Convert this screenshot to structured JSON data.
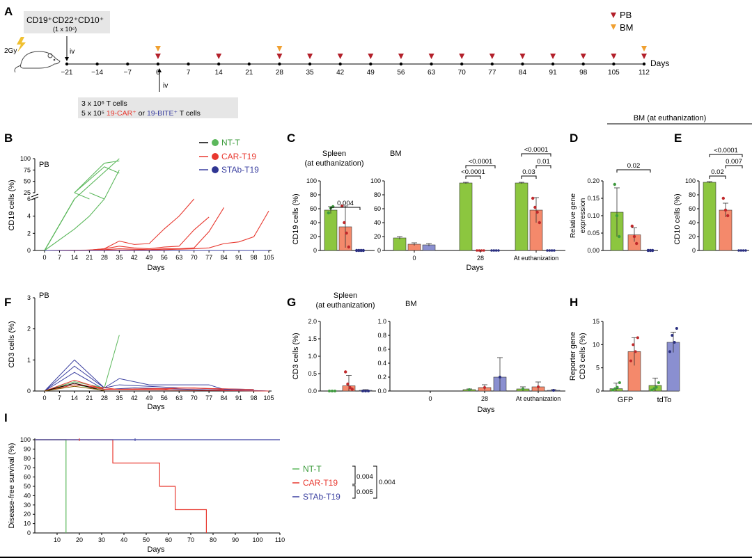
{
  "colors": {
    "green": "#5cb85c",
    "green_bar": "#8cc63f",
    "red": "#e8382f",
    "red_bar": "#f4896b",
    "blue": "#3a3fa0",
    "blue_bar": "#8a8fd0",
    "pb": "#b3202a",
    "bm": "#f0a030"
  },
  "panel_labels": {
    "A": "A",
    "B": "B",
    "C": "C",
    "D": "D",
    "E": "E",
    "F": "F",
    "G": "G",
    "H": "H",
    "I": "I"
  },
  "timeline": {
    "box1_line1": "CD19⁺CD22⁺CD10⁺",
    "box1_line2": "(1 x 10⁶)",
    "gy": "2Gy",
    "iv": "iv",
    "days": [
      -21,
      -14,
      -7,
      0,
      7,
      14,
      21,
      28,
      35,
      42,
      49,
      56,
      63,
      70,
      77,
      84,
      91,
      98,
      105,
      112
    ],
    "pb_days": [
      0,
      14,
      28,
      35,
      42,
      49,
      56,
      63,
      70,
      77,
      84,
      91,
      98,
      105,
      112
    ],
    "bm_days": [
      0,
      28,
      112
    ],
    "days_label": "Days",
    "legend_pb": "PB",
    "legend_bm": "BM",
    "box2_line1": "3 x 10⁶ T cells",
    "box2_line2_a": "5 x 10⁵ ",
    "box2_line2_b": "19-CAR⁺",
    "box2_line2_c": " or ",
    "box2_line2_d": "19-BITE⁺",
    "box2_line2_e": "  T cells"
  },
  "legend_B": {
    "items": [
      {
        "name": "NT-T",
        "color": "green"
      },
      {
        "name": "CAR-T19",
        "color": "red"
      },
      {
        "name": "STAb-T19",
        "color": "blue"
      }
    ]
  },
  "chart_data": [
    {
      "panel": "B",
      "type": "line",
      "title": "PB",
      "ylabel": "CD19 cells (%)",
      "xlabel": "Days",
      "xticks": [
        0,
        7,
        14,
        21,
        28,
        35,
        42,
        49,
        56,
        63,
        70,
        77,
        84,
        91,
        98,
        105
      ],
      "yticks_lower": [
        0,
        2,
        4,
        6
      ],
      "yticks_upper": [
        25,
        50,
        75,
        100
      ],
      "series": [
        {
          "name": "NT-T",
          "group": "green",
          "points": [
            [
              0,
              0
            ],
            [
              14,
              6
            ],
            [
              35,
              100
            ]
          ]
        },
        {
          "name": "NT-T",
          "group": "green",
          "points": [
            [
              0,
              0
            ],
            [
              14,
              7
            ],
            [
              28,
              90
            ],
            [
              35,
              95
            ]
          ]
        },
        {
          "name": "NT-T",
          "group": "green",
          "points": [
            [
              0,
              0
            ],
            [
              14,
              12
            ],
            [
              28,
              82
            ],
            [
              35,
              68
            ]
          ]
        },
        {
          "name": "NT-T",
          "group": "green",
          "points": [
            [
              0,
              0
            ],
            [
              14,
              2.5
            ],
            [
              21,
              4
            ],
            [
              28,
              6
            ],
            [
              35,
              75
            ]
          ]
        },
        {
          "name": "NT-T",
          "group": "green",
          "points": [
            [
              0,
              0
            ],
            [
              7,
              3
            ],
            [
              14,
              7
            ],
            [
              21,
              10
            ],
            [
              28,
              8
            ]
          ]
        },
        {
          "name": "CAR-T19",
          "group": "red",
          "points": [
            [
              0,
              0
            ],
            [
              14,
              0
            ],
            [
              21,
              0.05
            ],
            [
              28,
              0.2
            ],
            [
              35,
              1.1
            ],
            [
              42,
              0.7
            ],
            [
              49,
              0.8
            ],
            [
              56,
              2.5
            ],
            [
              63,
              4
            ],
            [
              70,
              7
            ]
          ]
        },
        {
          "name": "CAR-T19",
          "group": "red",
          "points": [
            [
              0,
              0
            ],
            [
              14,
              0
            ],
            [
              21,
              0.05
            ],
            [
              28,
              0.2
            ],
            [
              35,
              0.5
            ],
            [
              42,
              0.3
            ],
            [
              49,
              0.2
            ],
            [
              56,
              0.4
            ],
            [
              63,
              0.5
            ],
            [
              70,
              2.4
            ],
            [
              77,
              3.9
            ]
          ]
        },
        {
          "name": "CAR-T19",
          "group": "red",
          "points": [
            [
              0,
              0
            ],
            [
              21,
              0.05
            ],
            [
              28,
              0.1
            ],
            [
              35,
              0.2
            ],
            [
              42,
              0.15
            ],
            [
              49,
              0.1
            ],
            [
              56,
              0.2
            ],
            [
              63,
              0.2
            ],
            [
              70,
              0.3
            ],
            [
              77,
              2.2
            ],
            [
              84,
              5
            ]
          ]
        },
        {
          "name": "CAR-T19",
          "group": "red",
          "points": [
            [
              0,
              0
            ],
            [
              28,
              0.05
            ],
            [
              42,
              0.05
            ],
            [
              56,
              0.1
            ],
            [
              63,
              0.15
            ],
            [
              70,
              0.2
            ],
            [
              77,
              0.3
            ],
            [
              84,
              0.8
            ],
            [
              91,
              1
            ],
            [
              98,
              1.6
            ],
            [
              105,
              4.6
            ]
          ]
        },
        {
          "name": "STAb-T19",
          "group": "blue",
          "points": [
            [
              0,
              0
            ],
            [
              105,
              0
            ]
          ]
        }
      ]
    },
    {
      "panel": "C-spleen",
      "type": "bar",
      "title": "Spleen\n(at euthanization)",
      "ylabel": "CD19 cells (%)",
      "yticks": [
        0,
        20,
        40,
        60,
        80,
        100
      ],
      "bars": [
        {
          "group": "green",
          "value": 58,
          "err": 5,
          "points": [
            54,
            61,
            63
          ]
        },
        {
          "group": "red",
          "value": 34,
          "err": 30,
          "points": [
            64,
            40,
            25,
            5
          ]
        },
        {
          "group": "blue",
          "value": 0,
          "err": 0,
          "points": [
            0,
            0,
            0,
            0
          ]
        }
      ],
      "brackets": [
        {
          "from": 0,
          "to": 2,
          "label": "0.004"
        }
      ]
    },
    {
      "panel": "C-BM",
      "type": "bar",
      "title": "BM",
      "xlabel": "Days",
      "yticks": [
        0,
        20,
        40,
        60,
        80,
        100
      ],
      "groups": [
        {
          "label": "0",
          "bars": [
            {
              "group": "green",
              "value": 18,
              "err": 2
            },
            {
              "group": "red",
              "value": 9,
              "err": 2
            },
            {
              "group": "blue",
              "value": 8,
              "err": 2
            }
          ]
        },
        {
          "label": "28",
          "bars": [
            {
              "group": "green",
              "value": 97,
              "err": 1
            },
            {
              "group": "red",
              "value": 0,
              "err": 0
            },
            {
              "group": "blue",
              "value": 0,
              "err": 0
            }
          ]
        },
        {
          "label": "At euthanization",
          "bars": [
            {
              "group": "green",
              "value": 97,
              "err": 1
            },
            {
              "group": "red",
              "value": 58,
              "err": 18,
              "points": [
                75,
                62,
                55,
                40
              ]
            },
            {
              "group": "blue",
              "value": 0,
              "err": 0
            }
          ]
        }
      ],
      "brackets": [
        {
          "label": "<0.0001"
        },
        {
          "label": "<0.0001"
        },
        {
          "label": "<0.0001"
        },
        {
          "label": "0.01"
        },
        {
          "label": "0.03"
        }
      ]
    },
    {
      "panel": "D",
      "type": "bar",
      "ylabel": "Relative gene\nexpression",
      "yticks": [
        0.0,
        0.05,
        0.1,
        0.15,
        0.2
      ],
      "bars": [
        {
          "group": "green",
          "value": 0.11,
          "err": 0.07,
          "points": [
            0.19,
            0.1,
            0.04
          ]
        },
        {
          "group": "red",
          "value": 0.045,
          "err": 0.02,
          "points": [
            0.07,
            0.04,
            0.02
          ]
        },
        {
          "group": "blue",
          "value": 0,
          "err": 0,
          "points": [
            0,
            0,
            0
          ]
        }
      ],
      "brackets": [
        {
          "label": "0.02"
        }
      ],
      "header": "BM (at euthanization)"
    },
    {
      "panel": "E",
      "type": "bar",
      "ylabel": "CD10 cells (%)",
      "yticks": [
        0,
        20,
        40,
        60,
        80,
        100
      ],
      "bars": [
        {
          "group": "green",
          "value": 98,
          "err": 1
        },
        {
          "group": "red",
          "value": 58,
          "err": 10,
          "points": [
            75,
            58,
            50
          ]
        },
        {
          "group": "blue",
          "value": 0,
          "err": 0
        }
      ],
      "brackets": [
        {
          "label": "<0.0001"
        },
        {
          "label": "0.007"
        },
        {
          "label": "0.02"
        }
      ]
    },
    {
      "panel": "F",
      "type": "line",
      "title": "PB",
      "ylabel": "CD3 cells (%)",
      "xlabel": "Days",
      "xticks": [
        0,
        7,
        14,
        21,
        28,
        35,
        42,
        49,
        56,
        63,
        70,
        77,
        84,
        91,
        98,
        105
      ],
      "yticks": [
        0,
        1,
        2,
        3
      ]
    },
    {
      "panel": "G-spleen",
      "type": "bar",
      "title": "Spleen\n(at euthanization)",
      "ylabel": "CD3 cells (%)",
      "yticks": [
        0.0,
        0.5,
        1.0,
        1.5,
        2.0
      ],
      "bars": [
        {
          "group": "green",
          "value": 0,
          "err": 0
        },
        {
          "group": "red",
          "value": 0.15,
          "err": 0.3,
          "points": [
            0.55,
            0.2,
            0.1,
            0.05
          ]
        },
        {
          "group": "blue",
          "value": 0.02,
          "err": 0.02
        }
      ]
    },
    {
      "panel": "G-BM",
      "type": "bar",
      "title": "BM",
      "xlabel": "Days",
      "yticks": [
        0.0,
        0.2,
        0.4,
        0.6,
        0.8,
        1.0
      ],
      "groups": [
        {
          "label": "0",
          "bars": []
        },
        {
          "label": "28",
          "bars": [
            {
              "group": "green",
              "value": 0.02,
              "err": 0.01
            },
            {
              "group": "red",
              "value": 0.05,
              "err": 0.04
            },
            {
              "group": "blue",
              "value": 0.2,
              "err": 0.28
            }
          ]
        },
        {
          "label": "At euthanization",
          "bars": [
            {
              "group": "green",
              "value": 0.03,
              "err": 0.03
            },
            {
              "group": "red",
              "value": 0.06,
              "err": 0.07
            },
            {
              "group": "blue",
              "value": 0.01,
              "err": 0.01
            }
          ]
        }
      ]
    },
    {
      "panel": "H",
      "type": "bar",
      "ylabel": "Reporter gene\nCD3 cells (%)",
      "yticks": [
        0,
        5,
        10,
        15
      ],
      "groups": [
        {
          "label": "GFP",
          "bars": [
            {
              "group": "green",
              "value": 0.5,
              "err": 1.2
            },
            {
              "group": "red",
              "value": 8.5,
              "err": 3
            }
          ]
        },
        {
          "label": "tdTo",
          "bars": [
            {
              "group": "green",
              "value": 1.2,
              "err": 1.6
            },
            {
              "group": "blue",
              "value": 10.5,
              "err": 2.2
            }
          ]
        }
      ]
    },
    {
      "panel": "I",
      "type": "line",
      "ylabel": "Disease-free survival (%)",
      "xlabel": "Days",
      "xticks": [
        10,
        20,
        30,
        40,
        50,
        60,
        70,
        80,
        90,
        100,
        110
      ],
      "yticks": [
        0,
        10,
        20,
        30,
        40,
        50,
        60,
        70,
        80,
        90,
        100
      ],
      "series": [
        {
          "name": "NT-T",
          "steps": [
            [
              0,
              100
            ],
            [
              14,
              100
            ],
            [
              14,
              0
            ]
          ]
        },
        {
          "name": "CAR-T19",
          "steps": [
            [
              0,
              100
            ],
            [
              35,
              100
            ],
            [
              35,
              75
            ],
            [
              56,
              75
            ],
            [
              56,
              50
            ],
            [
              63,
              50
            ],
            [
              63,
              25
            ],
            [
              77,
              25
            ],
            [
              77,
              0
            ]
          ]
        },
        {
          "name": "STAb-T19",
          "steps": [
            [
              0,
              100
            ],
            [
              110,
              100
            ]
          ]
        }
      ],
      "legend": [
        "NT-T",
        "CAR-T19",
        "STAb-T19"
      ],
      "pvalues": [
        "0.004",
        "0.005",
        "0.004"
      ]
    }
  ]
}
